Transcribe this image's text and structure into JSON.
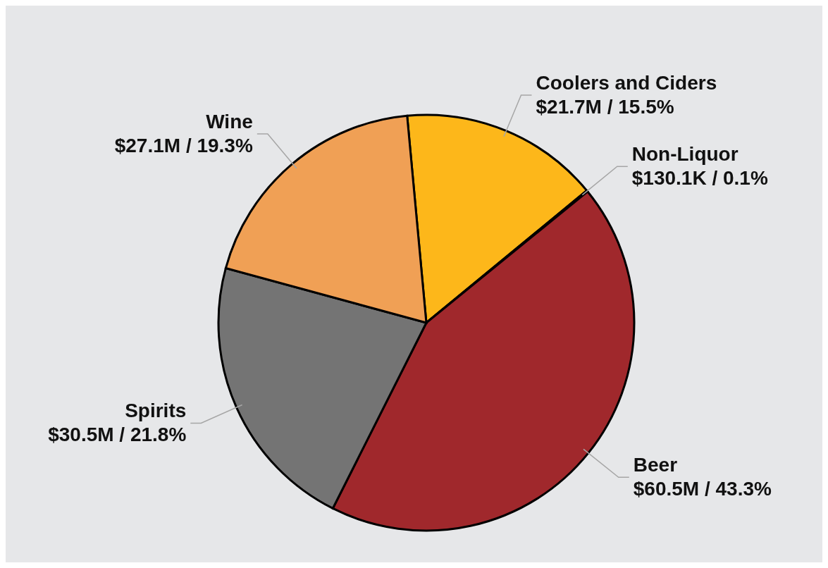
{
  "chart_data": {
    "type": "pie",
    "categories": [
      "Coolers and Ciders",
      "Non-Liquor",
      "Beer",
      "Spirits",
      "Wine"
    ],
    "values": [
      15.5,
      0.1,
      43.3,
      21.8,
      19.3
    ],
    "value_labels": [
      "$21.7M / 15.5%",
      "$130.1K / 0.1%",
      "$60.5M / 43.3%",
      "$30.5M / 21.8%",
      "$27.1M / 19.3%"
    ],
    "colors": [
      "#fdb71a",
      "#8b1f22",
      "#a0282c",
      "#747474",
      "#f0a055"
    ],
    "legend": false
  }
}
